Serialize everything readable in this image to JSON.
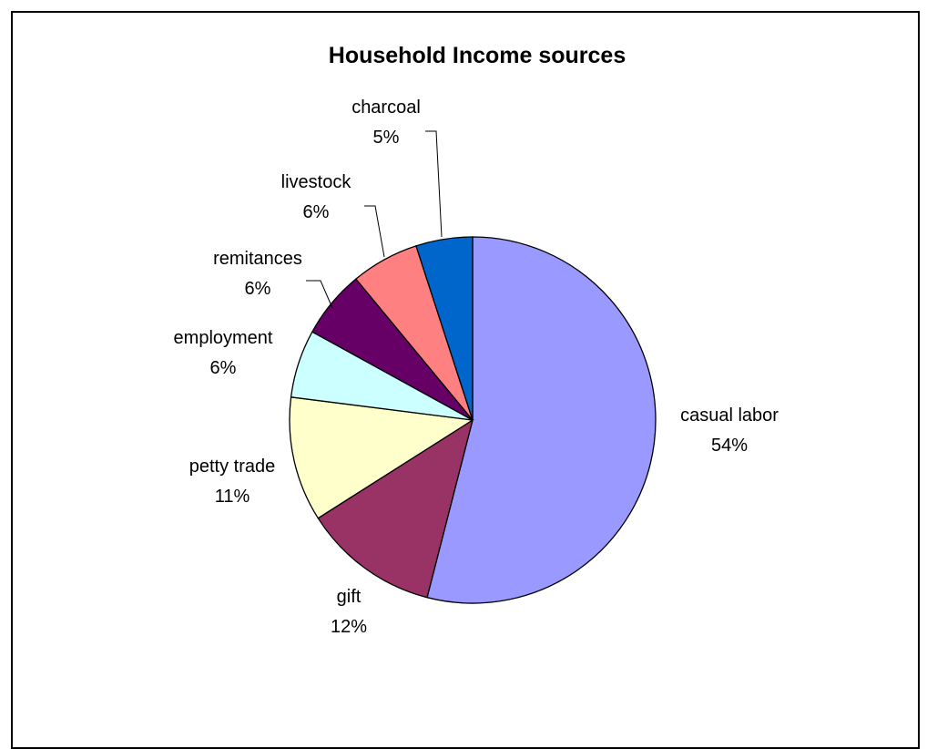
{
  "chart_data": {
    "type": "pie",
    "title": "Household Income sources",
    "slices": [
      {
        "label": "casual labor",
        "value": 54,
        "value_label": "54%",
        "color": "#9999FF"
      },
      {
        "label": "gift",
        "value": 12,
        "value_label": "12%",
        "color": "#993366"
      },
      {
        "label": "petty trade",
        "value": 11,
        "value_label": "11%",
        "color": "#FFFFCC"
      },
      {
        "label": "employment",
        "value": 6,
        "value_label": "6%",
        "color": "#CCFFFF"
      },
      {
        "label": "remitances",
        "value": 6,
        "value_label": "6%",
        "color": "#660066"
      },
      {
        "label": "livestock",
        "value": 6,
        "value_label": "6%",
        "color": "#FF8080"
      },
      {
        "label": "charcoal",
        "value": 5,
        "value_label": "5%",
        "color": "#0066CC"
      }
    ],
    "start_position": "12 o'clock",
    "direction": "clockwise"
  }
}
